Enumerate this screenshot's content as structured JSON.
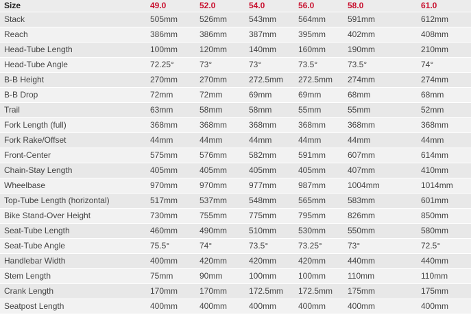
{
  "table": {
    "header": [
      "Size",
      "49.0",
      "52.0",
      "54.0",
      "56.0",
      "58.0",
      "61.0"
    ],
    "rows": [
      [
        "Stack",
        "505mm",
        "526mm",
        "543mm",
        "564mm",
        "591mm",
        "612mm"
      ],
      [
        "Reach",
        "386mm",
        "386mm",
        "387mm",
        "395mm",
        "402mm",
        "408mm"
      ],
      [
        "Head-Tube Length",
        "100mm",
        "120mm",
        "140mm",
        "160mm",
        "190mm",
        "210mm"
      ],
      [
        "Head-Tube Angle",
        "72.25°",
        "73°",
        "73°",
        "73.5°",
        "73.5°",
        "74°"
      ],
      [
        "B-B Height",
        "270mm",
        "270mm",
        "272.5mm",
        "272.5mm",
        "274mm",
        "274mm"
      ],
      [
        "B-B Drop",
        "72mm",
        "72mm",
        "69mm",
        "69mm",
        "68mm",
        "68mm"
      ],
      [
        "Trail",
        "63mm",
        "58mm",
        "58mm",
        "55mm",
        "55mm",
        "52mm"
      ],
      [
        "Fork Length (full)",
        "368mm",
        "368mm",
        "368mm",
        "368mm",
        "368mm",
        "368mm"
      ],
      [
        "Fork Rake/Offset",
        "44mm",
        "44mm",
        "44mm",
        "44mm",
        "44mm",
        "44mm"
      ],
      [
        "Front-Center",
        "575mm",
        "576mm",
        "582mm",
        "591mm",
        "607mm",
        "614mm"
      ],
      [
        "Chain-Stay Length",
        "405mm",
        "405mm",
        "405mm",
        "405mm",
        "407mm",
        "410mm"
      ],
      [
        "Wheelbase",
        "970mm",
        "970mm",
        "977mm",
        "987mm",
        "1004mm",
        "1014mm"
      ],
      [
        "Top-Tube Length (horizontal)",
        "517mm",
        "537mm",
        "548mm",
        "565mm",
        "583mm",
        "601mm"
      ],
      [
        "Bike Stand-Over Height",
        "730mm",
        "755mm",
        "775mm",
        "795mm",
        "826mm",
        "850mm"
      ],
      [
        "Seat-Tube Length",
        "460mm",
        "490mm",
        "510mm",
        "530mm",
        "550mm",
        "580mm"
      ],
      [
        "Seat-Tube Angle",
        "75.5°",
        "74°",
        "73.5°",
        "73.25°",
        "73°",
        "72.5°"
      ],
      [
        "Handlebar Width",
        "400mm",
        "420mm",
        "420mm",
        "420mm",
        "440mm",
        "440mm"
      ],
      [
        "Stem Length",
        "75mm",
        "90mm",
        "100mm",
        "100mm",
        "110mm",
        "110mm"
      ],
      [
        "Crank Length",
        "170mm",
        "170mm",
        "172.5mm",
        "172.5mm",
        "175mm",
        "175mm"
      ],
      [
        "Seatpost Length",
        "400mm",
        "400mm",
        "400mm",
        "400mm",
        "400mm",
        "400mm"
      ]
    ]
  }
}
